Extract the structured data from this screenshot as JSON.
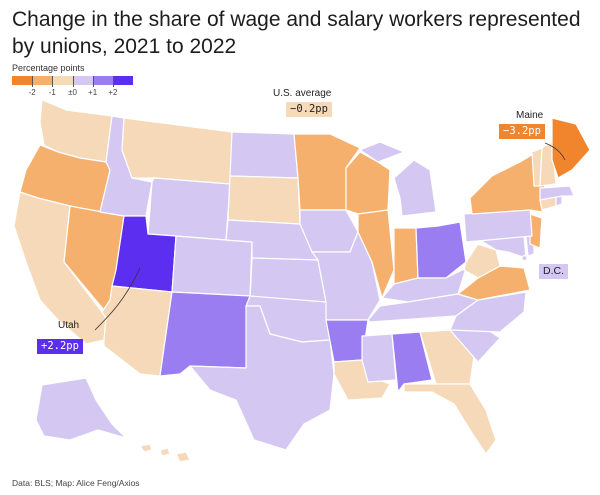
{
  "title": "Change in the share of wage and salary workers represented by unions, 2021 to 2022",
  "legend": {
    "title": "Percentage points",
    "ticks": [
      "-2",
      "-1",
      "±0",
      "+1",
      "+2"
    ],
    "colors": [
      "#f0852e",
      "#f5b06e",
      "#f5d9b8",
      "#d4c8f3",
      "#9a7df1",
      "#5b2ef0"
    ]
  },
  "annotations": {
    "us_average_label": "U.S. average",
    "us_average_value": "−0.2pp",
    "maine_label": "Maine",
    "maine_value": "−3.2pp",
    "utah_label": "Utah",
    "utah_value": "+2.2pp",
    "dc_label": "D.C."
  },
  "footer": "Data: BLS; Map: Alice Feng/Axios",
  "map_data": {
    "type": "choropleth",
    "category_colors": {
      "strong_decline": "#f0852e",
      "decline": "#f5b06e",
      "slight_decline": "#f5d9b8",
      "slight_increase": "#d4c8f3",
      "increase": "#9a7df1",
      "strong_increase": "#5b2ef0"
    },
    "states": {
      "WA": "slight_decline",
      "OR": "decline",
      "CA": "slight_decline",
      "NV": "decline",
      "ID": "slight_increase",
      "MT": "slight_decline",
      "WY": "slight_increase",
      "UT": "strong_increase",
      "AZ": "slight_decline",
      "CO": "slight_increase",
      "NM": "increase",
      "ND": "slight_increase",
      "SD": "slight_decline",
      "NE": "slight_increase",
      "KS": "slight_increase",
      "OK": "slight_increase",
      "TX": "slight_increase",
      "MN": "decline",
      "IA": "slight_increase",
      "MO": "slight_increase",
      "AR": "increase",
      "LA": "slight_decline",
      "WI": "decline",
      "IL": "decline",
      "MI": "slight_increase",
      "IN": "decline",
      "OH": "increase",
      "KY": "slight_increase",
      "TN": "slight_increase",
      "MS": "slight_increase",
      "AL": "increase",
      "GA": "slight_decline",
      "FL": "slight_decline",
      "SC": "slight_increase",
      "NC": "slight_increase",
      "VA": "decline",
      "WV": "slight_decline",
      "MD": "slight_increase",
      "DE": "slight_increase",
      "NJ": "decline",
      "PA": "slight_increase",
      "NY": "decline",
      "CT": "slight_decline",
      "RI": "slight_increase",
      "MA": "slight_increase",
      "VT": "slight_decline",
      "NH": "slight_decline",
      "ME": "strong_decline",
      "AK": "slight_increase",
      "HI": "slight_decline",
      "DC": "slight_increase"
    }
  }
}
